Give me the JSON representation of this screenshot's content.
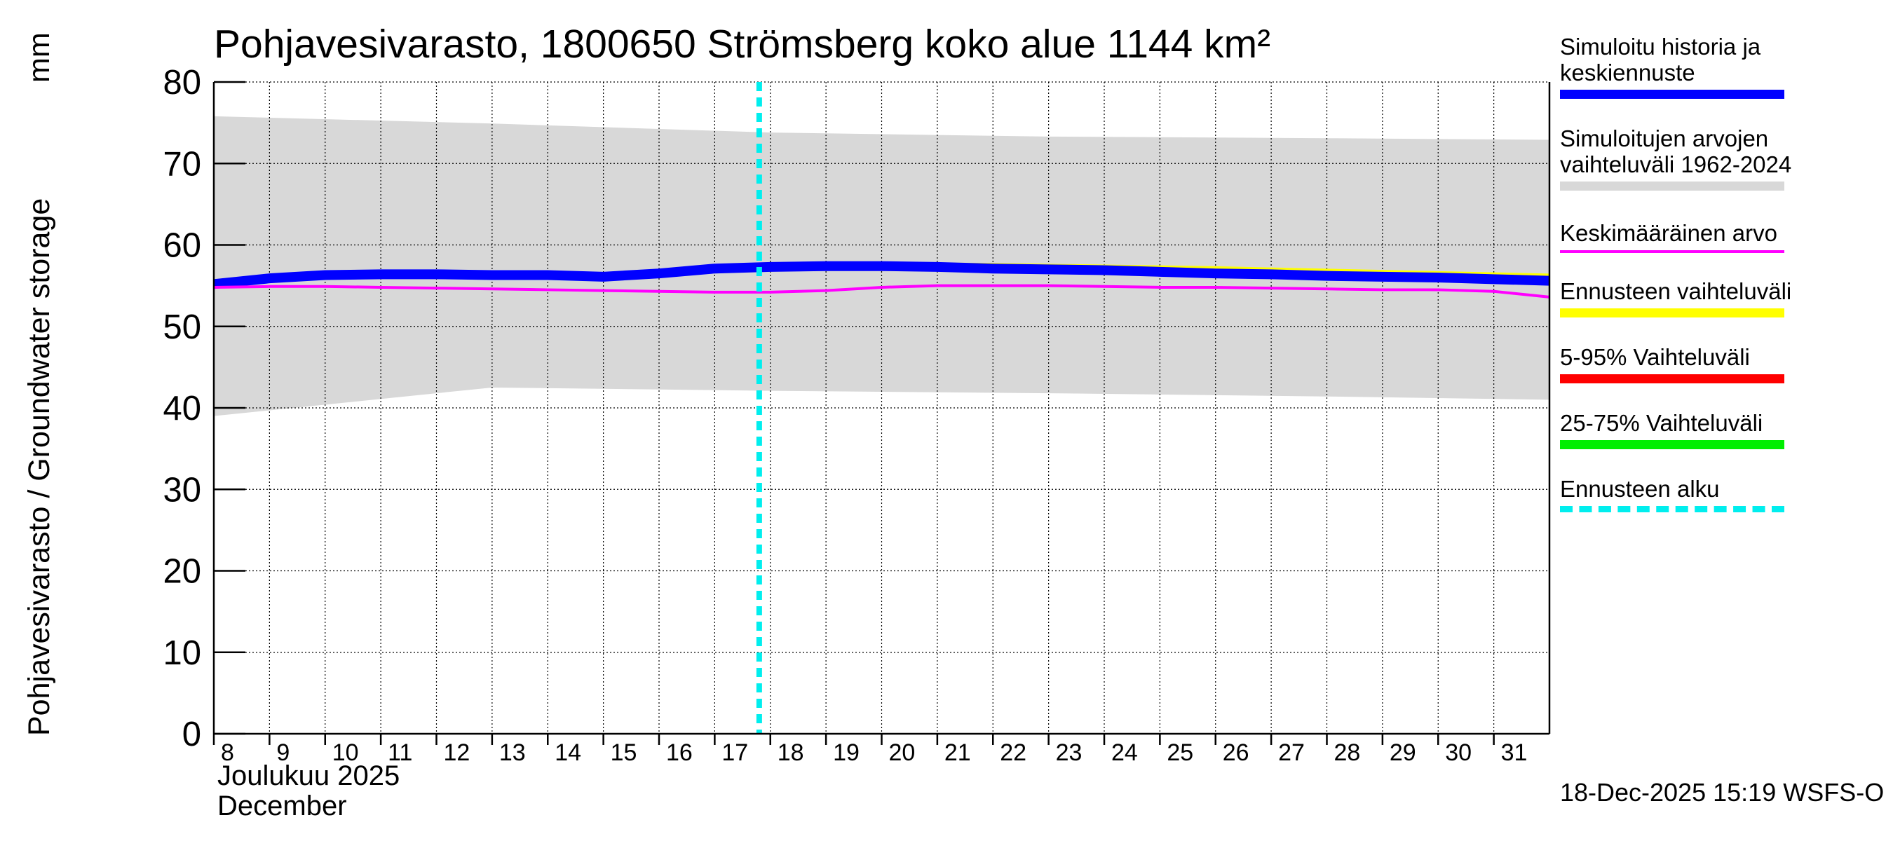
{
  "title": "Pohjavesivarasto, 1800650 Strömsberg koko alue 1144 km²",
  "y_axis_label": "Pohjavesivarasto / Groundwater storage",
  "y_axis_unit": "mm",
  "x_axis_label_fi": "Joulukuu  2025",
  "x_axis_label_en": "December",
  "footer": "18-Dec-2025 15:19 WSFS-O",
  "colors": {
    "history": "#0000ff",
    "range": "#d8d8d8",
    "mean": "#ff00ff",
    "forecast_range": "#ffff00",
    "p5_95": "#ff0000",
    "p25_75": "#00ee00",
    "forecast_start": "#00eeee",
    "grid": "#000000"
  },
  "legend": [
    {
      "label": "Simuloitu historia ja keskiennuste",
      "color": "#0000ff",
      "style": "thick",
      "icon": "solid-line"
    },
    {
      "label": "Simuloitujen arvojen vaihteluväli 1962-2024",
      "color": "#d8d8d8",
      "style": "thick",
      "icon": "solid-line"
    },
    {
      "label": "Keskimääräinen arvo",
      "color": "#ff00ff",
      "style": "thin",
      "icon": "solid-line"
    },
    {
      "label": "Ennusteen vaihteluväli",
      "color": "#ffff00",
      "style": "thick",
      "icon": "solid-line"
    },
    {
      "label": "5-95% Vaihteluväli",
      "color": "#ff0000",
      "style": "thick",
      "icon": "solid-line"
    },
    {
      "label": "25-75% Vaihteluväli",
      "color": "#00ee00",
      "style": "thick",
      "icon": "solid-line"
    },
    {
      "label": "Ennusteen alku",
      "color": "#00eeee",
      "style": "dashed",
      "icon": "dashed-line"
    }
  ],
  "chart_data": {
    "type": "line",
    "title": "Pohjavesivarasto, 1800650 Strömsberg koko alue 1144 km²",
    "ylabel": "Pohjavesivarasto / Groundwater storage  mm",
    "xlabel": "Joulukuu 2025 / December",
    "ylim": [
      0,
      80
    ],
    "yticks": [
      0,
      10,
      20,
      30,
      40,
      50,
      60,
      70,
      80
    ],
    "xlim": [
      8,
      32
    ],
    "xticks": [
      8,
      9,
      10,
      11,
      12,
      13,
      14,
      15,
      16,
      17,
      18,
      19,
      20,
      21,
      22,
      23,
      24,
      25,
      26,
      27,
      28,
      29,
      30,
      31
    ],
    "grid": true,
    "forecast_start_day": 17.8,
    "series": [
      {
        "name": "Simuloitujen arvojen vaihteluväli 1962-2024",
        "kind": "band",
        "x": [
          8,
          13,
          18,
          23,
          28,
          32
        ],
        "upper": [
          75.8,
          74.9,
          73.8,
          73.3,
          73.1,
          72.9
        ],
        "lower": [
          39.0,
          42.5,
          42.1,
          41.8,
          41.4,
          41.0
        ]
      },
      {
        "name": "Ennusteen vaihteluväli",
        "kind": "line",
        "x": [
          17.8,
          20,
          22,
          24,
          26,
          28,
          30,
          32
        ],
        "values": [
          57.3,
          57.5,
          57.4,
          57.2,
          57.0,
          56.7,
          56.4,
          56.1
        ]
      },
      {
        "name": "Simuloitu historia ja keskiennuste",
        "kind": "line",
        "x": [
          8,
          9,
          10,
          11,
          12,
          13,
          14,
          15,
          16,
          17,
          18,
          19,
          20,
          21,
          22,
          23,
          24,
          25,
          26,
          27,
          28,
          29,
          30,
          31,
          32
        ],
        "values": [
          55.2,
          55.9,
          56.3,
          56.4,
          56.4,
          56.3,
          56.3,
          56.1,
          56.5,
          57.1,
          57.3,
          57.4,
          57.4,
          57.3,
          57.1,
          57.0,
          56.9,
          56.7,
          56.5,
          56.4,
          56.2,
          56.1,
          56.0,
          55.8,
          55.6
        ]
      },
      {
        "name": "Keskimääräinen arvo",
        "kind": "line",
        "x": [
          8,
          9,
          10,
          11,
          12,
          13,
          14,
          15,
          16,
          17,
          18,
          19,
          20,
          21,
          22,
          23,
          24,
          25,
          26,
          27,
          28,
          29,
          30,
          31,
          32
        ],
        "values": [
          54.8,
          54.9,
          54.9,
          54.8,
          54.7,
          54.6,
          54.5,
          54.4,
          54.3,
          54.2,
          54.2,
          54.4,
          54.8,
          55.0,
          55.0,
          55.0,
          54.9,
          54.8,
          54.8,
          54.7,
          54.6,
          54.5,
          54.5,
          54.3,
          53.6
        ]
      }
    ]
  }
}
